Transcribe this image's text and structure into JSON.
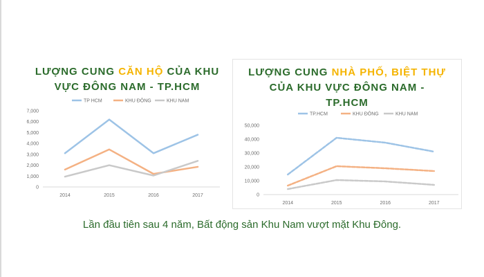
{
  "caption": "Lần đầu tiên sau 4 năm, Bất động sản Khu Nam vượt mặt Khu Đông.",
  "colors": {
    "hcm": "#9dc3e6",
    "dong": "#f4b183",
    "nam": "#c9c9c9",
    "title": "#2b6b2b",
    "highlight": "#f5b400"
  },
  "chart_data": [
    {
      "type": "line",
      "title_parts": [
        "LƯỢNG CUNG ",
        "CĂN HỘ",
        " CỦA KHU VỰC ĐÔNG NAM - TP.HCM"
      ],
      "title_line1a": "LƯỢNG CUNG ",
      "title_line1b": "CĂN HỘ",
      "title_line1c": " CỦA KHU",
      "title_line2": "VỰC ĐÔNG NAM - TP.HCM",
      "categories": [
        "2014",
        "2015",
        "2016",
        "2017"
      ],
      "ylim": [
        0,
        7000
      ],
      "yticks": [
        "0",
        "1,000",
        "2,000",
        "3,000",
        "4,000",
        "5,000",
        "6,000",
        "7,000"
      ],
      "series": [
        {
          "name": "TP HCM",
          "values": [
            3100,
            6200,
            3100,
            4800
          ]
        },
        {
          "name": "KHU ĐÔNG",
          "values": [
            1600,
            3450,
            1200,
            1850
          ]
        },
        {
          "name": "KHU NAM",
          "values": [
            950,
            2000,
            1050,
            2400
          ]
        }
      ],
      "dashed": false,
      "legend_position": "top"
    },
    {
      "type": "line",
      "title_line1a": "LƯỢNG CUNG ",
      "title_line1b": "NHÀ PHỐ, BIỆT THỰ",
      "title_line2": "CỦA KHU VỰC ĐÔNG NAM -",
      "title_line3": "TP.HCM",
      "categories": [
        "2014",
        "2015",
        "2016",
        "2017"
      ],
      "ylim": [
        0,
        50000
      ],
      "yticks": [
        "0",
        "10,000",
        "20,000",
        "30,000",
        "40,000",
        "50,000"
      ],
      "series": [
        {
          "name": "TP.HCM",
          "values": [
            14500,
            41000,
            37500,
            31000
          ]
        },
        {
          "name": "KHU ĐÔNG",
          "values": [
            6500,
            20500,
            19000,
            17000
          ]
        },
        {
          "name": "KHU NAM",
          "values": [
            4000,
            10500,
            9500,
            7000
          ]
        }
      ],
      "dashed": true,
      "legend_position": "top"
    }
  ]
}
